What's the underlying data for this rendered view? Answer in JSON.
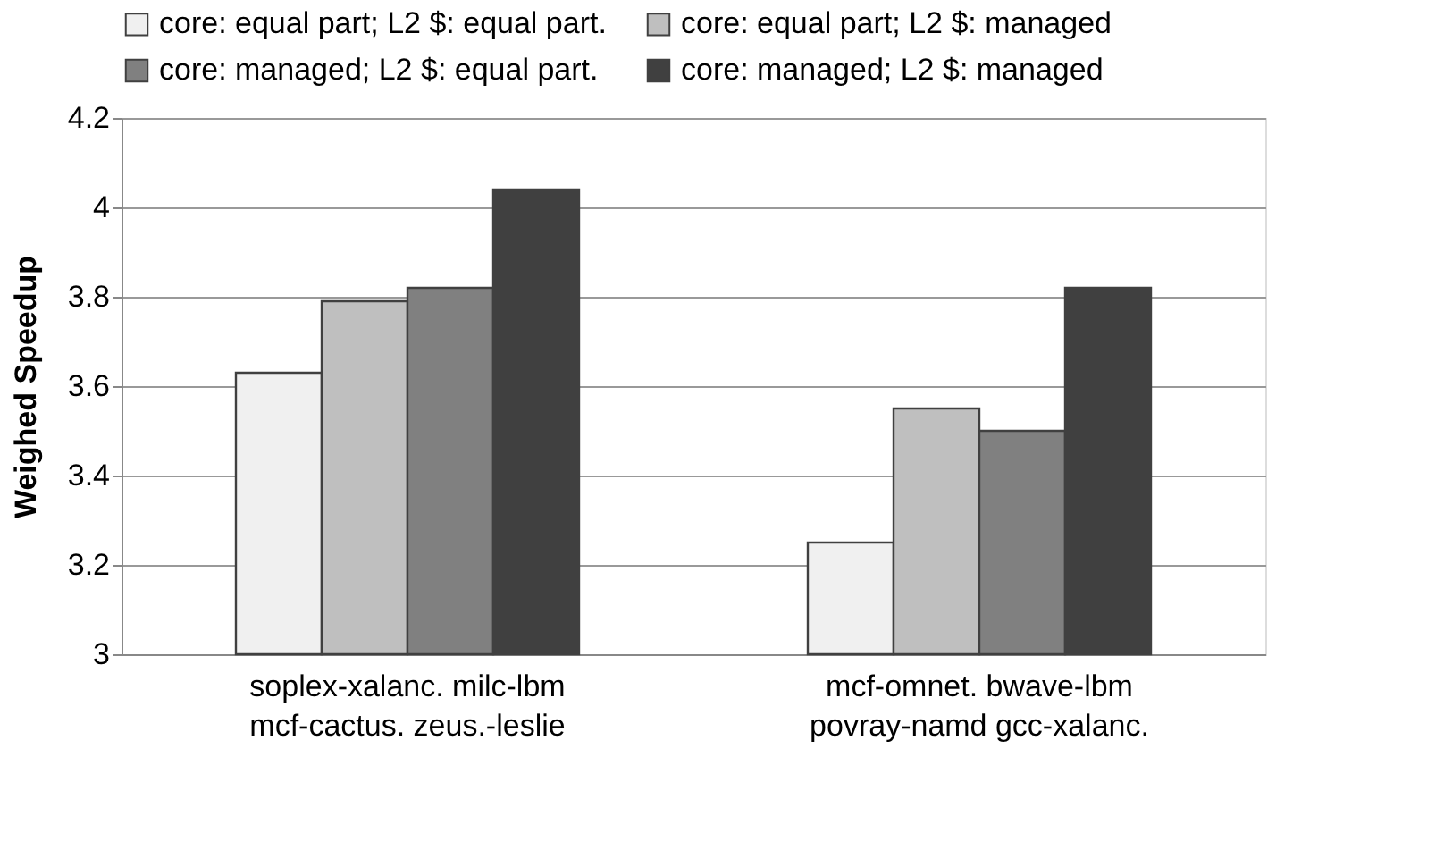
{
  "chart_data": {
    "type": "bar",
    "ylabel": "Weighed Speedup",
    "categories": [
      "soplex-xalanc. milc-lbm\nmcf-cactus. zeus.-leslie",
      "mcf-omnet. bwave-lbm\npovray-namd gcc-xalanc."
    ],
    "series": [
      {
        "name": "core: equal part; L2 $: equal part.",
        "color": "#f0f0f0",
        "values": [
          3.63,
          3.25
        ]
      },
      {
        "name": "core: equal part; L2 $: managed",
        "color": "#bfbfbf",
        "values": [
          3.79,
          3.55
        ]
      },
      {
        "name": "core: managed; L2 $: equal part.",
        "color": "#808080",
        "values": [
          3.82,
          3.5
        ]
      },
      {
        "name": "core: managed; L2 $: managed",
        "color": "#404040",
        "values": [
          4.04,
          3.82
        ]
      }
    ],
    "ylim": [
      3,
      4.2
    ],
    "yticks": [
      3,
      3.2,
      3.4,
      3.6,
      3.8,
      4,
      4.2
    ],
    "grid": "y",
    "legend": "top"
  }
}
